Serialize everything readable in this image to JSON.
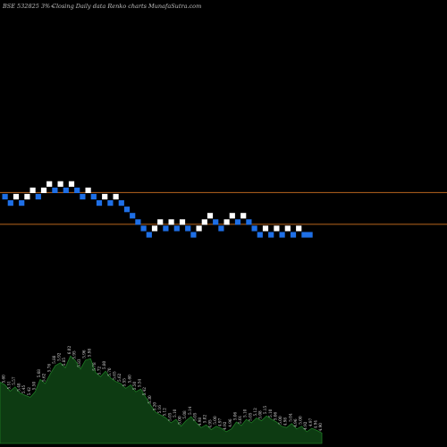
{
  "header": {
    "ticker": "BSE 532825 3%~",
    "description": "Closing Daily data  Renko  charts MunafaSutra.com"
  },
  "colors": {
    "background": "#000000",
    "up_brick": "#ffffff",
    "down_brick": "#1e6fe6",
    "level_line": "#b8651e",
    "area_fill": "#0d3b12",
    "area_outline": "#1e7a25"
  },
  "chart_data": {
    "type": "renko",
    "level_lines": [
      {
        "row": 1
      },
      {
        "row": -4
      }
    ],
    "bricks": [
      {
        "dir": "down",
        "row": 0
      },
      {
        "dir": "down",
        "row": -1
      },
      {
        "dir": "up",
        "row": 0
      },
      {
        "dir": "down",
        "row": -1
      },
      {
        "dir": "up",
        "row": 0
      },
      {
        "dir": "up",
        "row": 1
      },
      {
        "dir": "down",
        "row": 0
      },
      {
        "dir": "up",
        "row": 1
      },
      {
        "dir": "up",
        "row": 2
      },
      {
        "dir": "down",
        "row": 1
      },
      {
        "dir": "up",
        "row": 2
      },
      {
        "dir": "down",
        "row": 1
      },
      {
        "dir": "up",
        "row": 2
      },
      {
        "dir": "down",
        "row": 1
      },
      {
        "dir": "down",
        "row": 0
      },
      {
        "dir": "up",
        "row": 1
      },
      {
        "dir": "down",
        "row": 0
      },
      {
        "dir": "down",
        "row": -1
      },
      {
        "dir": "up",
        "row": 0
      },
      {
        "dir": "down",
        "row": -1
      },
      {
        "dir": "up",
        "row": 0
      },
      {
        "dir": "down",
        "row": -1
      },
      {
        "dir": "down",
        "row": -2
      },
      {
        "dir": "down",
        "row": -3
      },
      {
        "dir": "down",
        "row": -4
      },
      {
        "dir": "down",
        "row": -5
      },
      {
        "dir": "down",
        "row": -6
      },
      {
        "dir": "up",
        "row": -5
      },
      {
        "dir": "up",
        "row": -4
      },
      {
        "dir": "down",
        "row": -5
      },
      {
        "dir": "up",
        "row": -4
      },
      {
        "dir": "down",
        "row": -5
      },
      {
        "dir": "up",
        "row": -4
      },
      {
        "dir": "down",
        "row": -5
      },
      {
        "dir": "down",
        "row": -6
      },
      {
        "dir": "up",
        "row": -5
      },
      {
        "dir": "up",
        "row": -4
      },
      {
        "dir": "up",
        "row": -3
      },
      {
        "dir": "down",
        "row": -4
      },
      {
        "dir": "down",
        "row": -5
      },
      {
        "dir": "up",
        "row": -4
      },
      {
        "dir": "up",
        "row": -3
      },
      {
        "dir": "down",
        "row": -4
      },
      {
        "dir": "up",
        "row": -3
      },
      {
        "dir": "down",
        "row": -4
      },
      {
        "dir": "down",
        "row": -5
      },
      {
        "dir": "down",
        "row": -6
      },
      {
        "dir": "up",
        "row": -5
      },
      {
        "dir": "down",
        "row": -6
      },
      {
        "dir": "up",
        "row": -5
      },
      {
        "dir": "down",
        "row": -6
      },
      {
        "dir": "up",
        "row": -5
      },
      {
        "dir": "down",
        "row": -6
      },
      {
        "dir": "up",
        "row": -5
      },
      {
        "dir": "down",
        "row": -6
      },
      {
        "dir": "down",
        "row": -6
      }
    ],
    "area_values": [
      {
        "v": 5.64,
        "label": "5.64"
      },
      {
        "v": 5.6,
        "label": "5.60"
      },
      {
        "v": 5.51,
        "label": "5.51"
      },
      {
        "v": 5.57,
        "label": "5.57"
      },
      {
        "v": 5.48,
        "label": "5.48"
      },
      {
        "v": 5.45,
        "label": "5.45"
      },
      {
        "v": 5.42,
        "label": "5.42"
      },
      {
        "v": 5.5,
        "label": "5.50"
      },
      {
        "v": 5.68,
        "label": "5.68"
      },
      {
        "v": 5.62,
        "label": "5.62"
      },
      {
        "v": 5.76,
        "label": "5.76"
      },
      {
        "v": 5.88,
        "label": "5.88"
      },
      {
        "v": 5.92,
        "label": "5.92"
      },
      {
        "v": 5.85,
        "label": "5.85"
      },
      {
        "v": 6.02,
        "label": "6.02"
      },
      {
        "v": 5.95,
        "label": "5.95"
      },
      {
        "v": 5.83,
        "label": "5.83"
      },
      {
        "v": 5.96,
        "label": "5.96"
      },
      {
        "v": 5.98,
        "label": "5.98"
      },
      {
        "v": 5.78,
        "label": "5.78"
      },
      {
        "v": 5.72,
        "label": "5.72"
      },
      {
        "v": 5.8,
        "label": "5.80"
      },
      {
        "v": 5.7,
        "label": "5.70"
      },
      {
        "v": 5.65,
        "label": "5.65"
      },
      {
        "v": 5.62,
        "label": "5.62"
      },
      {
        "v": 5.55,
        "label": "5.55"
      },
      {
        "v": 5.6,
        "label": "5.60"
      },
      {
        "v": 5.5,
        "label": "5.50"
      },
      {
        "v": 5.54,
        "label": "5.54"
      },
      {
        "v": 5.42,
        "label": "5.42"
      },
      {
        "v": 5.3,
        "label": "5.30"
      },
      {
        "v": 5.2,
        "label": "5.20"
      },
      {
        "v": 5.16,
        "label": "5.16"
      },
      {
        "v": 5.12,
        "label": "5.12"
      },
      {
        "v": 5.05,
        "label": "5.05"
      },
      {
        "v": 5.1,
        "label": "5.10"
      },
      {
        "v": 5.0,
        "label": "5.00"
      },
      {
        "v": 5.08,
        "label": "5.08"
      },
      {
        "v": 5.14,
        "label": "5.14"
      },
      {
        "v": 5.05,
        "label": "5.05"
      },
      {
        "v": 4.98,
        "label": "4.98"
      },
      {
        "v": 5.02,
        "label": "5.02"
      },
      {
        "v": 4.95,
        "label": "4.95"
      },
      {
        "v": 5.0,
        "label": "5.00"
      },
      {
        "v": 4.97,
        "label": "4.97"
      },
      {
        "v": 4.92,
        "label": "4.92"
      },
      {
        "v": 4.96,
        "label": "4.96"
      },
      {
        "v": 5.06,
        "label": "5.06"
      },
      {
        "v": 5.01,
        "label": "5.01"
      },
      {
        "v": 5.1,
        "label": "5.10"
      },
      {
        "v": 5.05,
        "label": "5.05"
      },
      {
        "v": 5.12,
        "label": "5.12"
      },
      {
        "v": 5.08,
        "label": "5.08"
      },
      {
        "v": 5.15,
        "label": "5.15"
      },
      {
        "v": 5.1,
        "label": "5.10"
      },
      {
        "v": 5.06,
        "label": "5.06"
      },
      {
        "v": 5.0,
        "label": "5.00"
      },
      {
        "v": 4.98,
        "label": "4.98"
      },
      {
        "v": 5.04,
        "label": "5.04"
      },
      {
        "v": 4.96,
        "label": "4.96"
      },
      {
        "v": 5.0,
        "label": "5.00"
      },
      {
        "v": 4.92,
        "label": "4.92"
      },
      {
        "v": 4.97,
        "label": "4.97"
      },
      {
        "v": 4.94,
        "label": "4.94"
      },
      {
        "v": 4.9,
        "label": "4.90"
      }
    ]
  }
}
